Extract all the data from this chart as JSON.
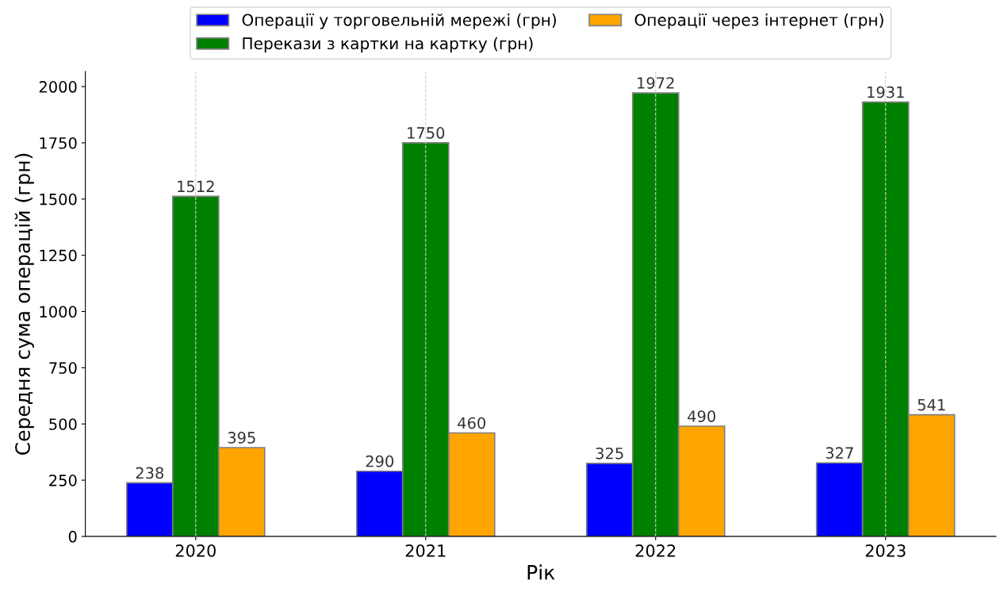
{
  "chart_data": {
    "type": "bar",
    "xlabel": "Рік",
    "ylabel": "Середня сума операцій (грн)",
    "categories": [
      "2020",
      "2021",
      "2022",
      "2023"
    ],
    "series": [
      {
        "name": "Операції у торговельній мережі (грн)",
        "color": "#0000ff",
        "values": [
          238,
          290,
          325,
          327
        ]
      },
      {
        "name": "Перекази з картки на картку (грн)",
        "color": "#008000",
        "values": [
          1512,
          1750,
          1972,
          1931
        ]
      },
      {
        "name": "Операції через інтернет (грн)",
        "color": "#ffa500",
        "values": [
          395,
          460,
          490,
          541
        ]
      }
    ],
    "ylim": [
      0,
      2067
    ],
    "yticks": [
      0,
      250,
      500,
      750,
      1000,
      1250,
      1500,
      1750,
      2000
    ],
    "grid": "x",
    "legend": "top",
    "data_labels": true
  }
}
